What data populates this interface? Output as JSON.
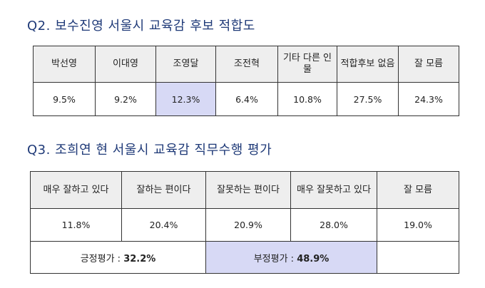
{
  "q2": {
    "title": "Q2. 보수진영 서울시 교육감 후보 적합도",
    "headers": [
      "박선영",
      "이대영",
      "조영달",
      "조전혁",
      "기타 다른 인물",
      "적합후보 없음",
      "잘 모름"
    ],
    "values": [
      "9.5%",
      "9.2%",
      "12.3%",
      "6.4%",
      "10.8%",
      "27.5%",
      "24.3%"
    ]
  },
  "q3": {
    "title": "Q3. 조희연 현 서울시 교육감 직무수행 평가",
    "headers": [
      "매우 잘하고 있다",
      "잘하는 편이다",
      "잘못하는 편이다",
      "매우 잘못하고 있다",
      "잘 모름"
    ],
    "values": [
      "11.8%",
      "20.4%",
      "20.9%",
      "28.0%",
      "19.0%"
    ],
    "positive_label": "긍정평가 : ",
    "positive_value": "32.2%",
    "negative_label": "부정평가 : ",
    "negative_value": "48.9%"
  },
  "colors": {
    "heading": "#1f3a78",
    "header_bg": "#eeeeee",
    "highlight_bg": "#d7d9f5",
    "border": "#333333"
  }
}
